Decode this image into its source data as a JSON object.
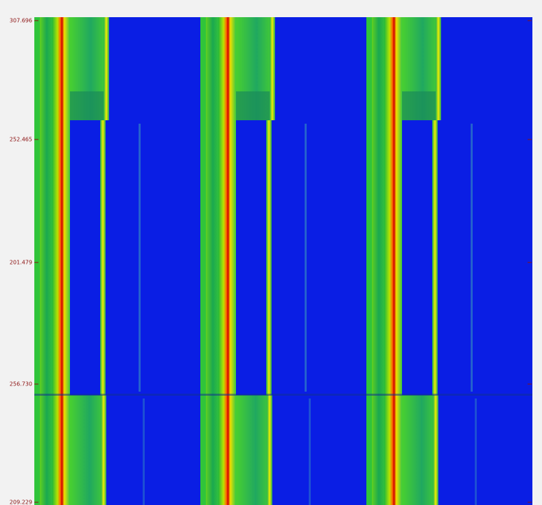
{
  "axis_labels": [
    "307.696",
    "252.465",
    "201.479",
    "256.730",
    "209.229"
  ]
}
